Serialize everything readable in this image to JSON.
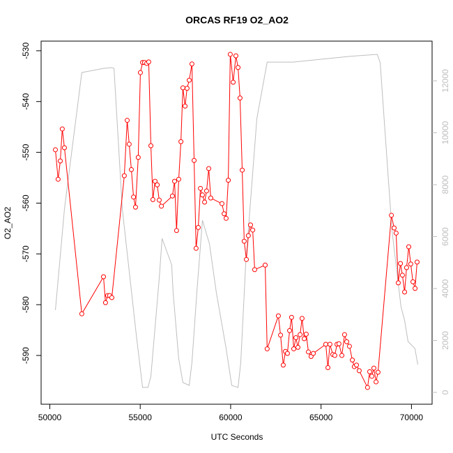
{
  "chart_data": {
    "type": "line",
    "title": "ORCAS RF19 O2_AO2",
    "x_label": "UTC Seconds",
    "y_label": "O2_AO2",
    "xlim": [
      49520,
      71140
    ],
    "ylim": [
      -599.6,
      -528.1
    ],
    "y2lim": [
      -456,
      13530
    ],
    "xticks": [
      50000,
      55000,
      60000,
      65000,
      70000
    ],
    "yticks": [
      -590,
      -580,
      -570,
      -560,
      -550,
      -540,
      -530
    ],
    "y2ticks": [
      0,
      2000,
      4000,
      6000,
      8000,
      10000,
      12000
    ],
    "series": [
      {
        "color": "#ff0000",
        "x": [
          50310,
          50460,
          50580,
          50690,
          50810,
          51770,
          52970,
          53080,
          53200,
          53310,
          53430,
          54120,
          54280,
          54390,
          54510,
          54630,
          54740,
          54890,
          55010,
          55130,
          55240,
          55360,
          55470,
          55590,
          55700,
          55820,
          55940,
          56050,
          56170,
          56780,
          56900,
          57010,
          57130,
          57250,
          57360,
          57480,
          57590,
          57710,
          57860,
          57980,
          58090,
          58210,
          58330,
          58440,
          58560,
          58670,
          58790,
          58900,
          59520,
          59640,
          59750,
          59870,
          59980,
          60140,
          60290,
          60410,
          60520,
          60640,
          60750,
          60870,
          60980,
          61100,
          61220,
          61330,
          61910,
          62020,
          62640,
          62760,
          62910,
          63030,
          63140,
          63260,
          63370,
          63490,
          63610,
          63720,
          63840,
          63950,
          64070,
          64180,
          64300,
          64450,
          64570,
          65260,
          65380,
          65490,
          65650,
          65760,
          65880,
          65990,
          66150,
          66300,
          66420,
          66570,
          66730,
          66840,
          66960,
          67110,
          67570,
          67690,
          67810,
          67920,
          68040,
          68150,
          68890,
          69040,
          69150,
          69270,
          69390,
          69500,
          69620,
          69730,
          69850,
          69960,
          70080,
          70200,
          70310
        ],
        "values": [
          -549.5,
          -555.3,
          -551.7,
          -545.4,
          -549.1,
          -581.8,
          -574.5,
          -579.6,
          -578.2,
          -578.2,
          -578.6,
          -554.6,
          -543.7,
          -548.4,
          -553.4,
          -558.8,
          -560.8,
          -551.0,
          -534.3,
          -532.3,
          -532.3,
          -532.5,
          -532.2,
          -548.7,
          -559.3,
          -555.7,
          -556.4,
          -559.4,
          -560.6,
          -558.6,
          -555.7,
          -565.4,
          -555.3,
          -547.9,
          -537.3,
          -540.9,
          -537.4,
          -535.8,
          -532.6,
          -551.6,
          -568.9,
          -564.8,
          -557.1,
          -558.4,
          -559.8,
          -557.6,
          -553.2,
          -559.0,
          -560.1,
          -562.1,
          -563.0,
          -555.5,
          -530.7,
          -536.2,
          -531.0,
          -533.3,
          -539.3,
          -553.5,
          -567.5,
          -571.1,
          -566.4,
          -564.3,
          -565.3,
          -573.1,
          -572.2,
          -588.7,
          -582.2,
          -586.0,
          -591.9,
          -589.2,
          -589.6,
          -585.1,
          -582.5,
          -588.7,
          -586.5,
          -588.4,
          -585.9,
          -582.7,
          -586.7,
          -585.8,
          -589.3,
          -590.2,
          -589.6,
          -587.8,
          -592.4,
          -587.8,
          -589.8,
          -590.0,
          -587.8,
          -587.7,
          -590.0,
          -585.9,
          -587.3,
          -588.2,
          -590.9,
          -592.2,
          -591.9,
          -593.0,
          -596.3,
          -593.2,
          -594.1,
          -592.5,
          -595.2,
          -593.3,
          -562.4,
          -564.9,
          -565.9,
          -575.7,
          -571.9,
          -574.2,
          -577.5,
          -572.7,
          -568.6,
          -572.0,
          -575.5,
          -576.8,
          -571.6
        ]
      },
      {
        "color": "#bebebe",
        "axis": "y2",
        "x": [
          50310,
          50810,
          51770,
          52970,
          53430,
          53550,
          54010,
          54780,
          55130,
          55430,
          55590,
          56050,
          56210,
          56740,
          56820,
          57130,
          57360,
          57710,
          57860,
          58130,
          58440,
          58830,
          59210,
          59750,
          60060,
          60410,
          60560,
          60830,
          61450,
          62020,
          63450,
          66530,
          68110,
          68270,
          68920,
          69420,
          69620,
          69810,
          70190,
          70350
        ],
        "values": [
          3170,
          7060,
          12320,
          12480,
          12510,
          12480,
          7060,
          2230,
          190,
          190,
          620,
          4380,
          5930,
          4910,
          3840,
          1290,
          380,
          270,
          1150,
          3840,
          6630,
          5720,
          3840,
          1690,
          270,
          190,
          1150,
          4910,
          10550,
          12720,
          12720,
          12940,
          13020,
          12700,
          6250,
          3300,
          2770,
          1960,
          1690,
          1070
        ]
      }
    ]
  }
}
